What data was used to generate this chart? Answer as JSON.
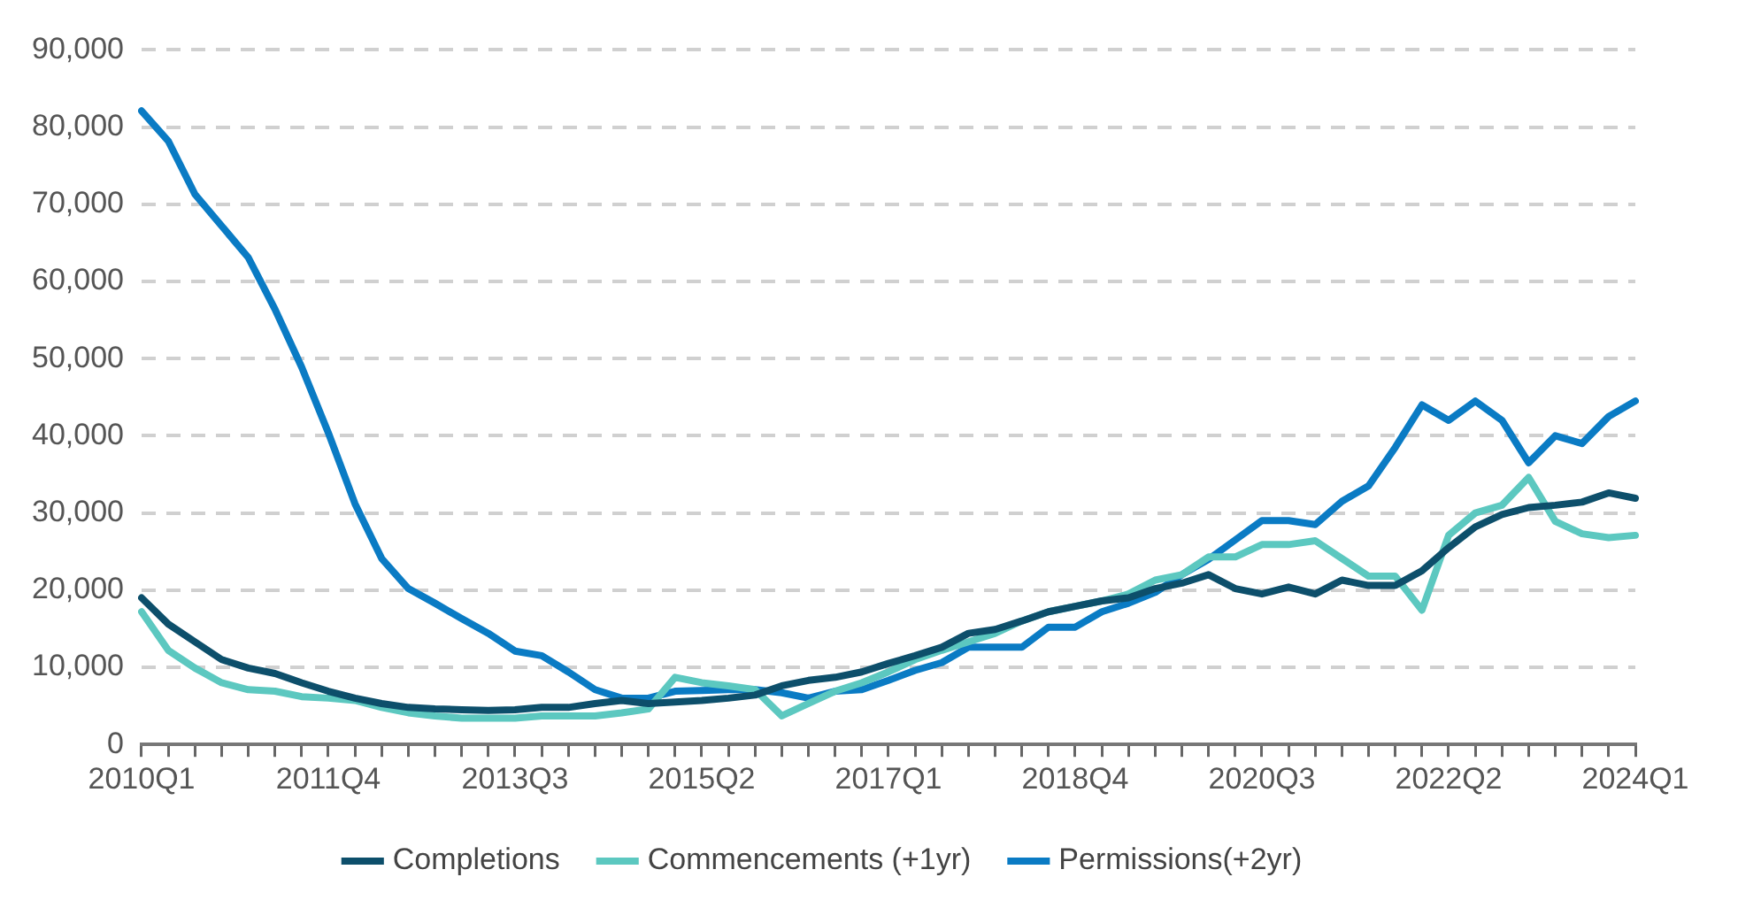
{
  "chart_data": {
    "type": "line",
    "categories": [
      "2010Q1",
      null,
      null,
      null,
      null,
      null,
      null,
      "2011Q4",
      null,
      null,
      null,
      null,
      null,
      null,
      "2013Q3",
      null,
      null,
      null,
      null,
      null,
      null,
      "2015Q2",
      null,
      null,
      null,
      null,
      null,
      null,
      "2017Q1",
      null,
      null,
      null,
      null,
      null,
      null,
      "2018Q4",
      null,
      null,
      null,
      null,
      null,
      null,
      "2020Q3",
      null,
      null,
      null,
      null,
      null,
      null,
      "2022Q2",
      null,
      null,
      null,
      null,
      null,
      null,
      "2024Q1"
    ],
    "series": [
      {
        "name": "Completions",
        "color": "#0d4f6b",
        "values": [
          19000,
          15600,
          13300,
          11000,
          9900,
          9200,
          8000,
          6900,
          6000,
          5300,
          4800,
          4600,
          4500,
          4400,
          4500,
          4800,
          4800,
          5300,
          5700,
          5300,
          5500,
          5700,
          6000,
          6400,
          7600,
          8300,
          8700,
          9400,
          10500,
          11500,
          12600,
          14400,
          14900,
          16000,
          17200,
          17900,
          18600,
          19000,
          20200,
          20900,
          22000,
          20200,
          19500,
          20400,
          19500,
          21300,
          20600,
          20600,
          22500,
          25500,
          28200,
          29800,
          30700,
          31000,
          31400,
          32600,
          31900
        ]
      },
      {
        "name": "Commencements (+1yr)",
        "color": "#5cc8c0",
        "values": [
          17200,
          12200,
          9900,
          8000,
          7100,
          6900,
          6200,
          6000,
          5700,
          4800,
          4100,
          3700,
          3400,
          3400,
          3400,
          3700,
          3700,
          3700,
          4100,
          4600,
          8700,
          8000,
          7600,
          7100,
          3700,
          5300,
          6900,
          8000,
          9400,
          11000,
          12200,
          13300,
          14400,
          16000,
          17200,
          17900,
          18600,
          19500,
          21300,
          22000,
          24300,
          24300,
          25900,
          25900,
          26400,
          24100,
          21800,
          21800,
          17400,
          27100,
          30000,
          31000,
          34600,
          28900,
          27300,
          26800,
          27100
        ]
      },
      {
        "name": "Permissions(+2yr)",
        "color": "#0a7bc4",
        "values": [
          82100,
          78200,
          71300,
          67200,
          63100,
          56400,
          48900,
          40400,
          31200,
          24100,
          20200,
          18300,
          16300,
          14400,
          12100,
          11500,
          9400,
          7100,
          6000,
          6000,
          6900,
          7000,
          7100,
          7100,
          6700,
          6000,
          6900,
          7100,
          8300,
          9600,
          10600,
          12600,
          12600,
          12600,
          15200,
          15200,
          17200,
          18300,
          19700,
          22000,
          24000,
          26500,
          29000,
          29000,
          28500,
          31500,
          33500,
          38500,
          44000,
          42000,
          44500,
          42000,
          36500,
          40000,
          39000,
          42500,
          44500
        ]
      }
    ],
    "ylim": [
      0,
      90000
    ],
    "yticks": [
      0,
      {
        "value": 10000,
        "label": "10,000"
      },
      {
        "value": 20000,
        "label": "20,000"
      },
      {
        "value": 30000,
        "label": "30,000"
      },
      {
        "value": 40000,
        "label": "40,000"
      },
      {
        "value": 50000,
        "label": "50,000"
      },
      {
        "value": 60000,
        "label": "60,000"
      },
      {
        "value": 70000,
        "label": "70,000"
      },
      {
        "value": 80000,
        "label": "80,000"
      },
      {
        "value": 90000,
        "label": "90,000"
      }
    ],
    "grid": "y",
    "legend": "bottom",
    "marker": "none",
    "line_style": "solid"
  }
}
